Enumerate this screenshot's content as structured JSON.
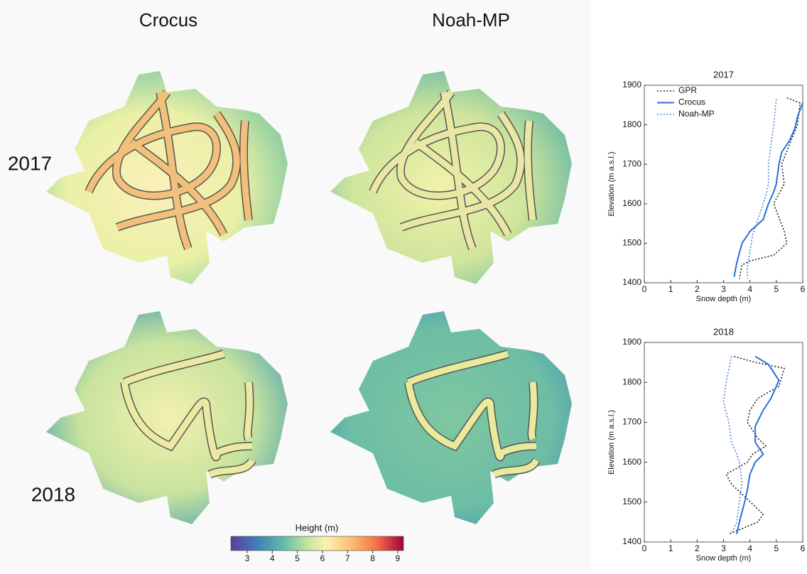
{
  "maps": {
    "columns": [
      "Crocus",
      "Noah-MP"
    ],
    "rows": [
      "2017",
      "2018"
    ],
    "colorbar": {
      "label": "Height (m)",
      "lim": [
        2.35,
        9.23
      ],
      "ticks": [
        3,
        4,
        5,
        6,
        7,
        8,
        9
      ]
    }
  },
  "chart_data": [
    {
      "type": "line",
      "title": "2017",
      "x_label": "Snow depth (m)",
      "y_label": "Elevation (m a.s.l.)",
      "xlim": [
        0,
        6
      ],
      "ylim": [
        1400,
        1900
      ],
      "xticks": [
        0,
        1,
        2,
        3,
        4,
        5,
        6
      ],
      "yticks": [
        1400,
        1500,
        1600,
        1700,
        1800,
        1900
      ],
      "legend": "upper left",
      "series": [
        {
          "name": "GPR",
          "color": "#222222",
          "style": "dotted",
          "x": [
            5.4,
            5.9,
            5.8,
            5.5,
            5.2,
            5.3,
            4.9,
            5.3,
            5.4,
            4.9,
            4.0,
            3.7,
            3.6
          ],
          "values": [
            1868,
            1855,
            1800,
            1750,
            1700,
            1650,
            1600,
            1530,
            1500,
            1470,
            1455,
            1445,
            1410
          ]
        },
        {
          "name": "Crocus",
          "color": "#2a6fdb",
          "style": "solid",
          "x": [
            6.0,
            5.8,
            5.7,
            5.5,
            5.2,
            5.1,
            5.0,
            4.9,
            4.7,
            4.6,
            4.5,
            4.0,
            3.7,
            3.5,
            3.4
          ],
          "values": [
            1855,
            1820,
            1790,
            1760,
            1730,
            1700,
            1650,
            1630,
            1600,
            1580,
            1560,
            1530,
            1500,
            1450,
            1415
          ]
        },
        {
          "name": "Noah-MP",
          "color": "#4a86d8",
          "style": "dotted",
          "x": [
            5.0,
            4.9,
            4.8,
            4.7,
            4.7,
            4.6,
            4.4,
            4.1,
            4.0,
            3.9,
            3.9
          ],
          "values": [
            1865,
            1800,
            1750,
            1700,
            1650,
            1620,
            1580,
            1520,
            1480,
            1440,
            1410
          ]
        }
      ]
    },
    {
      "type": "line",
      "title": "2018",
      "x_label": "Snow depth (m)",
      "y_label": "Elevation (m a.s.l.)",
      "xlim": [
        0,
        6
      ],
      "ylim": [
        1400,
        1900
      ],
      "xticks": [
        0,
        1,
        2,
        3,
        4,
        5,
        6
      ],
      "yticks": [
        1400,
        1500,
        1600,
        1700,
        1800,
        1900
      ],
      "series": [
        {
          "color": "#222222",
          "style": "dotted",
          "x": [
            3.4,
            4.2,
            5.3,
            5.1,
            4.3,
            4.0,
            3.9,
            4.3,
            4.6,
            4.1,
            3.9,
            3.1,
            3.3,
            3.7,
            4.5,
            4.3,
            3.2
          ],
          "values": [
            1865,
            1850,
            1835,
            1790,
            1760,
            1730,
            1700,
            1660,
            1640,
            1620,
            1600,
            1570,
            1545,
            1520,
            1470,
            1450,
            1420
          ]
        },
        {
          "color": "#2a6fdb",
          "style": "solid",
          "x": [
            4.2,
            4.7,
            5.1,
            4.8,
            4.5,
            4.2,
            4.2,
            4.5,
            4.2,
            4.0,
            3.9,
            3.8,
            3.6,
            3.5
          ],
          "values": [
            1865,
            1845,
            1805,
            1760,
            1730,
            1690,
            1650,
            1620,
            1600,
            1570,
            1530,
            1500,
            1450,
            1420
          ]
        },
        {
          "color": "#4a86d8",
          "style": "dotted",
          "x": [
            3.3,
            3.1,
            3.0,
            3.2,
            3.3,
            3.5,
            3.6,
            3.7,
            3.6,
            3.5,
            3.3
          ],
          "values": [
            1865,
            1800,
            1750,
            1700,
            1650,
            1620,
            1600,
            1550,
            1500,
            1450,
            1420
          ]
        }
      ]
    }
  ]
}
